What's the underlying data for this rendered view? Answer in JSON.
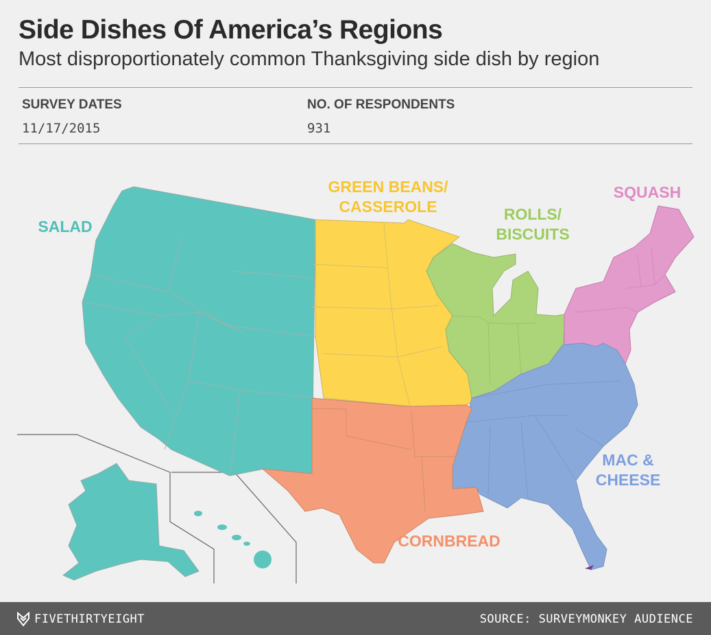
{
  "header": {
    "title": "Side Dishes Of America’s Regions",
    "subtitle": "Most disproportionately common Thanksgiving side dish by region"
  },
  "meta": {
    "survey_dates_label": "SURVEY DATES",
    "survey_dates_value": "11/17/2015",
    "respondents_label": "NO. OF RESPONDENTS",
    "respondents_value": "931"
  },
  "regions": [
    {
      "id": "salad",
      "label_lines": [
        "SALAD"
      ],
      "color": "#5cc5be",
      "label_color": "#4fbfb8"
    },
    {
      "id": "green-beans",
      "label_lines": [
        "GREEN BEANS/",
        "CASSEROLE"
      ],
      "color": "#fdd54f",
      "label_color": "#f7c531"
    },
    {
      "id": "rolls",
      "label_lines": [
        "ROLLS/",
        "BISCUITS"
      ],
      "color": "#acd57a",
      "label_color": "#9ccc5e"
    },
    {
      "id": "squash",
      "label_lines": [
        "SQUASH"
      ],
      "color": "#e39bcc",
      "label_color": "#e08ac3"
    },
    {
      "id": "mac-cheese",
      "label_lines": [
        "MAC &",
        "CHEESE"
      ],
      "color": "#8aa9db",
      "label_color": "#7c9ee0"
    },
    {
      "id": "cornbread",
      "label_lines": [
        "CORNBREAD"
      ],
      "color": "#f59d7b",
      "label_color": "#f39069"
    }
  ],
  "footer": {
    "brand": "FIVETHIRTYEIGHT",
    "source": "SOURCE: SURVEYMONKEY AUDIENCE"
  }
}
